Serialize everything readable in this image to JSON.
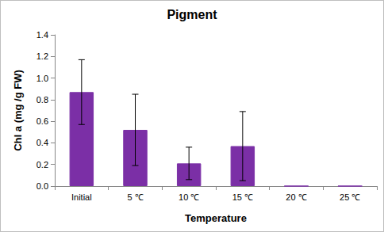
{
  "chart_data": {
    "type": "bar",
    "title": "Pigment",
    "x_label": "Temperature",
    "y_label": "Chl a (mg /g FW)",
    "categories": [
      "Initial",
      "5 ℃",
      "10 ℃",
      "15 ℃",
      "20 ℃",
      "25 ℃"
    ],
    "values": [
      0.87,
      0.52,
      0.21,
      0.37,
      0,
      0
    ],
    "errors": [
      0.3,
      0.33,
      0.15,
      0.32,
      null,
      null
    ],
    "color": "#7b2fa6",
    "ylim": [
      0,
      1.4
    ],
    "yticks": [
      {
        "value": 0,
        "label": "0.0"
      },
      0.2,
      0.4,
      0.6,
      0.8,
      {
        "value": 1,
        "label": "1.0"
      },
      1.2,
      1.4
    ],
    "grid": false
  }
}
